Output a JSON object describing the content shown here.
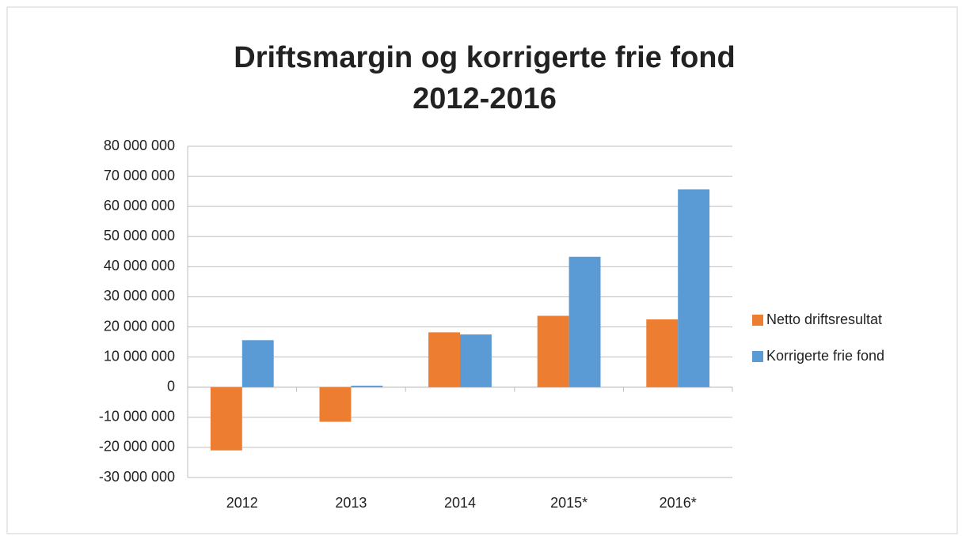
{
  "chart_data": {
    "type": "bar",
    "title": [
      "Driftsmargin og korrigerte frie fond",
      "2012-2016"
    ],
    "categories": [
      "2012",
      "2013",
      "2014",
      "2015*",
      "2016*"
    ],
    "series": [
      {
        "name": "Netto driftsresultat",
        "color": "#ed7d31",
        "values": [
          -21000000,
          -11500000,
          18200000,
          23700000,
          22500000
        ]
      },
      {
        "name": "Korrigerte frie fond",
        "color": "#5b9bd5",
        "values": [
          15600000,
          500000,
          17500000,
          43300000,
          65700000
        ]
      }
    ],
    "ylim": [
      -30000000,
      80000000
    ],
    "yticks": [
      {
        "value": -30000000,
        "label": "-30 000 000"
      },
      {
        "value": -20000000,
        "label": "-20 000 000"
      },
      {
        "value": -10000000,
        "label": "-10 000 000"
      },
      0,
      {
        "value": 10000000,
        "label": "10 000 000"
      },
      {
        "value": 20000000,
        "label": "20 000 000"
      },
      {
        "value": 30000000,
        "label": "30 000 000"
      },
      {
        "value": 40000000,
        "label": "40 000 000"
      },
      {
        "value": 50000000,
        "label": "50 000 000"
      },
      {
        "value": 60000000,
        "label": "60 000 000"
      },
      {
        "value": 70000000,
        "label": "70 000 000"
      },
      {
        "value": 80000000,
        "label": "80 000 000"
      }
    ],
    "grid": true,
    "legend": "right"
  }
}
